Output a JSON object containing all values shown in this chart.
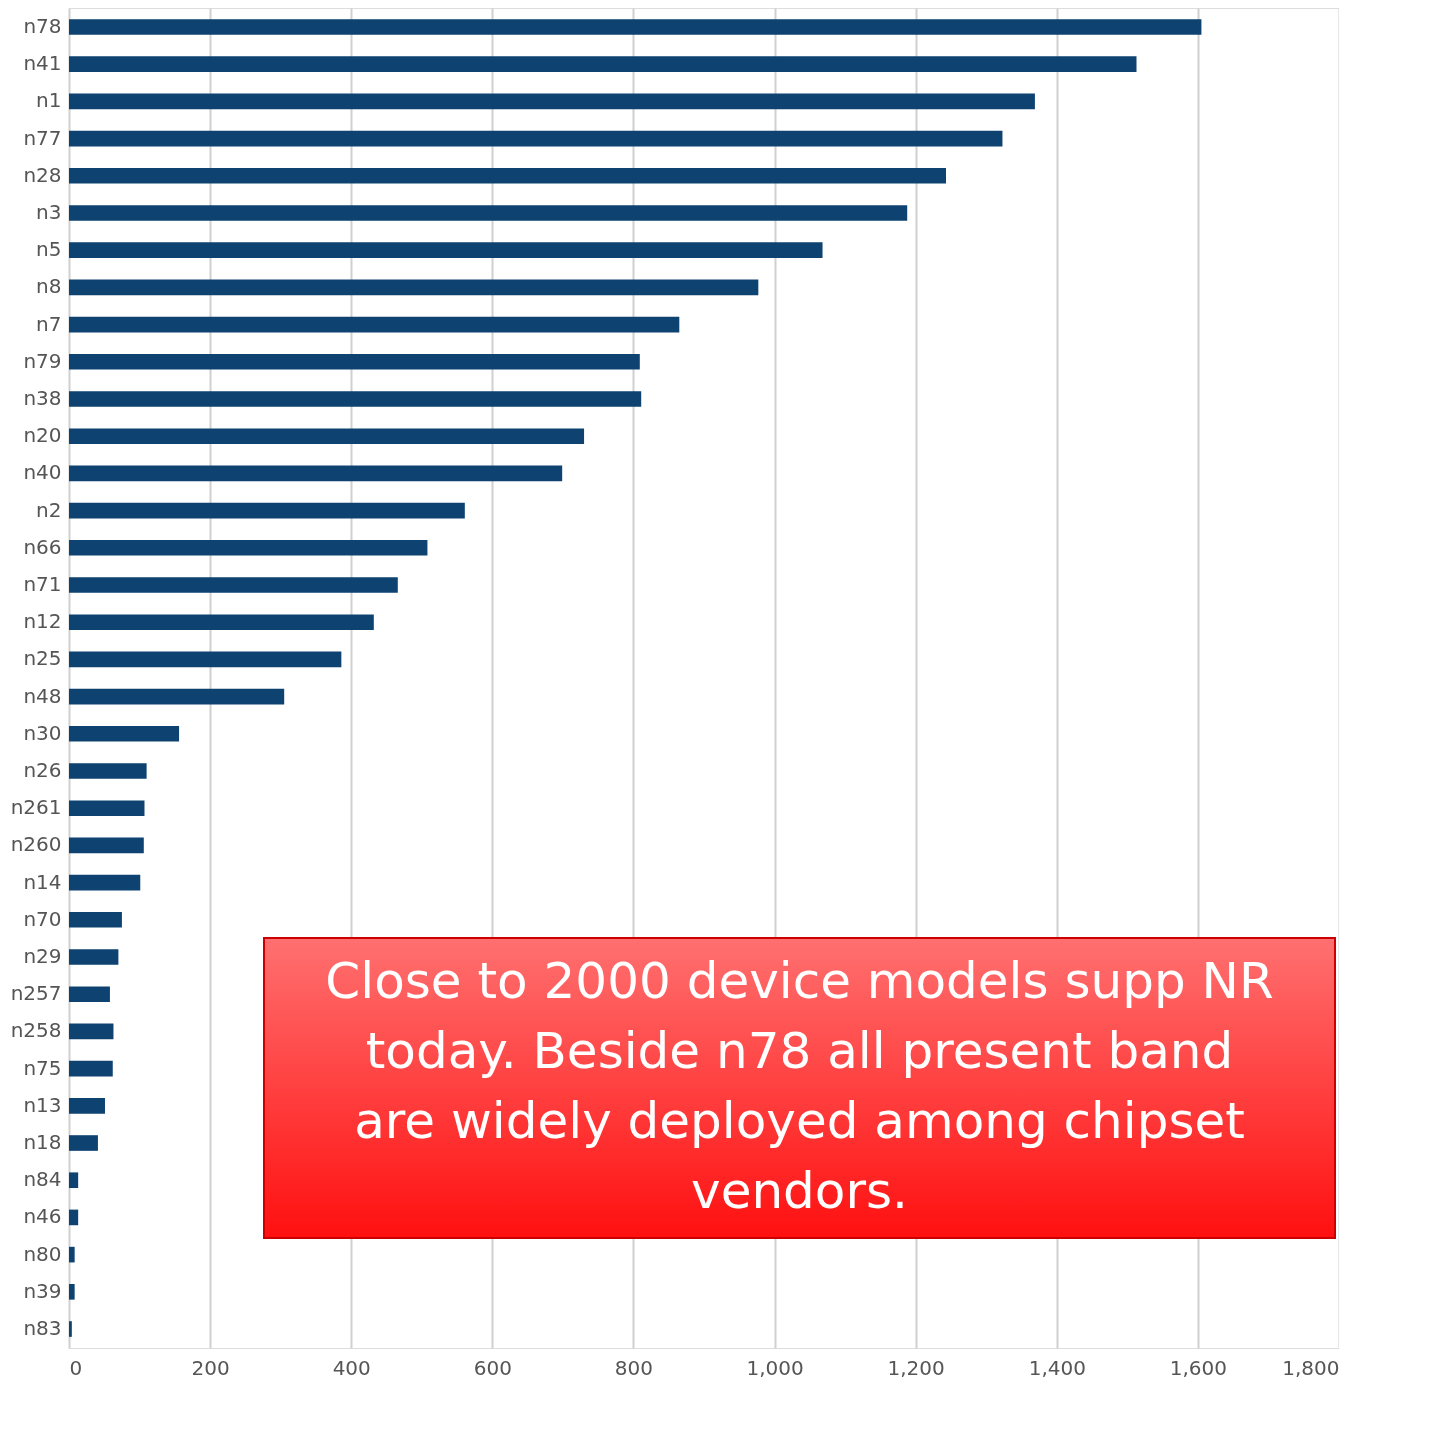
{
  "chart_data": {
    "type": "bar",
    "orientation": "horizontal",
    "categories": [
      "n78",
      "n41",
      "n1",
      "n77",
      "n28",
      "n3",
      "n5",
      "n8",
      "n7",
      "n79",
      "n38",
      "n20",
      "n40",
      "n2",
      "n66",
      "n71",
      "n12",
      "n25",
      "n48",
      "n30",
      "n26",
      "n261",
      "n260",
      "n14",
      "n70",
      "n29",
      "n257",
      "n258",
      "n75",
      "n13",
      "n18",
      "n84",
      "n46",
      "n80",
      "n39",
      "n83"
    ],
    "values": [
      1605,
      1513,
      1369,
      1323,
      1243,
      1188,
      1068,
      977,
      865,
      809,
      811,
      730,
      699,
      561,
      508,
      466,
      432,
      386,
      305,
      156,
      110,
      107,
      106,
      101,
      75,
      70,
      58,
      63,
      62,
      51,
      41,
      13,
      13,
      8,
      8,
      4
    ],
    "color": "#0d4271",
    "xlim": [
      0,
      1800
    ],
    "xticks": [
      0,
      200,
      400,
      600,
      800,
      {
        "value": 1000,
        "label": "1,000"
      },
      {
        "value": 1200,
        "label": "1,200"
      },
      {
        "value": 1400,
        "label": "1,400"
      },
      {
        "value": 1600,
        "label": "1,600"
      },
      {
        "value": 1800,
        "label": "1,800"
      }
    ],
    "grid": "x",
    "annotations": [
      "Close to 2000 device models supp NR today. Beside n78 all present band are widely deployed among chipset vendors."
    ]
  }
}
